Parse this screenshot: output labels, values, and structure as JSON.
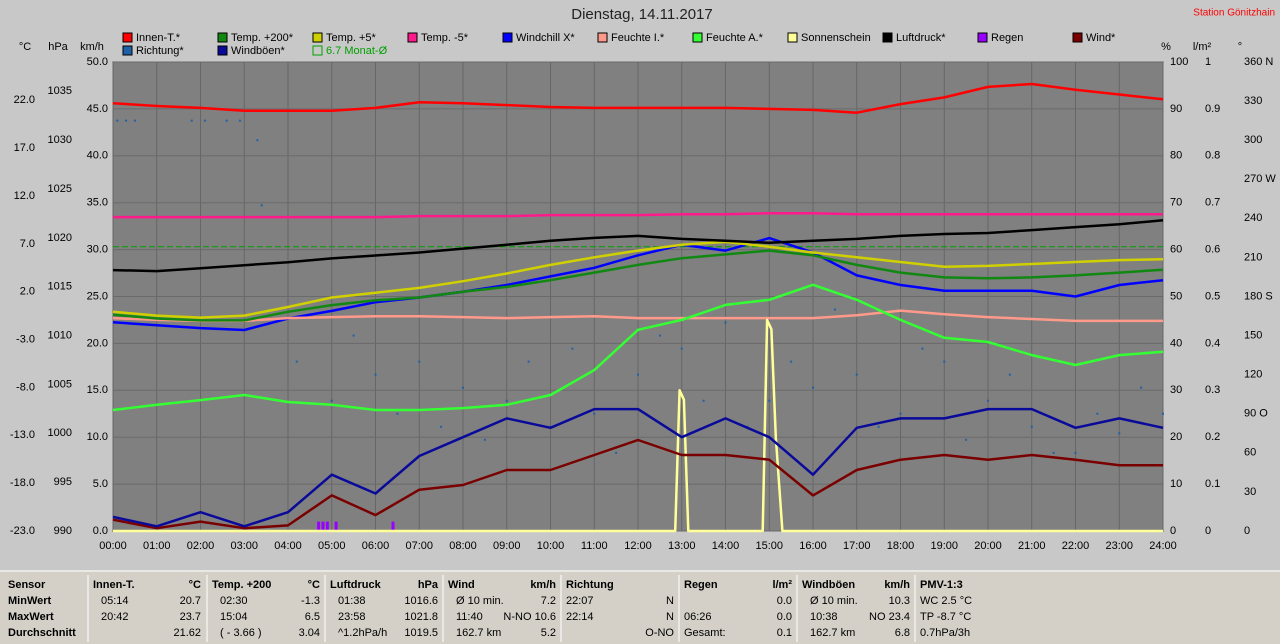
{
  "chart_data": {
    "type": "line",
    "title": "Dienstag, 14.11.2017",
    "subtitle": "Station Gönitzhain",
    "x": [
      0,
      1,
      2,
      3,
      4,
      5,
      6,
      7,
      8,
      9,
      10,
      11,
      12,
      13,
      14,
      15,
      16,
      17,
      18,
      19,
      20,
      21,
      22,
      23,
      24
    ],
    "xlim": [
      0,
      24
    ],
    "xticks": [
      {
        "value": 0,
        "label": "00:00"
      },
      {
        "value": 1,
        "label": "01:00"
      },
      {
        "value": 2,
        "label": "02:00"
      },
      {
        "value": 3,
        "label": "03:00"
      },
      {
        "value": 4,
        "label": "04:00"
      },
      {
        "value": 5,
        "label": "05:00"
      },
      {
        "value": 6,
        "label": "06:00"
      },
      {
        "value": 7,
        "label": "07:00"
      },
      {
        "value": 8,
        "label": "08:00"
      },
      {
        "value": 9,
        "label": "09:00"
      },
      {
        "value": 10,
        "label": "10:00"
      },
      {
        "value": 11,
        "label": "11:00"
      },
      {
        "value": 12,
        "label": "12:00"
      },
      {
        "value": 13,
        "label": "13:00"
      },
      {
        "value": 14,
        "label": "14:00"
      },
      {
        "value": 15,
        "label": "15:00"
      },
      {
        "value": 16,
        "label": "16:00"
      },
      {
        "value": 17,
        "label": "17:00"
      },
      {
        "value": 18,
        "label": "18:00"
      },
      {
        "value": 19,
        "label": "19:00"
      },
      {
        "value": 20,
        "label": "20:00"
      },
      {
        "value": 21,
        "label": "21:00"
      },
      {
        "value": 22,
        "label": "22:00"
      },
      {
        "value": 23,
        "label": "23:00"
      },
      {
        "value": 24,
        "label": "24:00"
      }
    ],
    "grid": true,
    "axes": [
      {
        "label": "°C",
        "ylim": [
          -23,
          26
        ],
        "yticks": [
          {
            "value": -23,
            "label": "-23.0"
          },
          {
            "value": -18,
            "label": "-18.0"
          },
          {
            "value": -13,
            "label": "-13.0"
          },
          {
            "value": -8,
            "label": "-8.0"
          },
          {
            "value": -3,
            "label": "-3.0"
          },
          {
            "value": 2,
            "label": "2.0"
          },
          {
            "value": 7,
            "label": "7.0"
          },
          {
            "value": 12,
            "label": "12.0"
          },
          {
            "value": 17,
            "label": "17.0"
          },
          {
            "value": 22,
            "label": "22.0"
          }
        ],
        "reference": {
          "name": "6.7 Monat-Ø",
          "value": 6.7,
          "color": "#00a000"
        },
        "series": [
          {
            "name": "Innen-T.*",
            "color": "#ff0000",
            "values": [
              21.7,
              21.4,
              21.2,
              20.9,
              20.9,
              20.9,
              21.2,
              21.8,
              21.7,
              21.5,
              21.3,
              21.2,
              21.2,
              21.2,
              21.2,
              21.1,
              21.0,
              20.7,
              21.6,
              22.3,
              23.4,
              23.7,
              23.1,
              22.6,
              22.1
            ]
          },
          {
            "name": "Temp. +200*",
            "color": "#118811",
            "values": [
              -0.4,
              -0.8,
              -1.0,
              -1.0,
              -0.1,
              0.6,
              1.1,
              1.4,
              2.0,
              2.5,
              3.2,
              4.0,
              4.8,
              5.5,
              5.9,
              6.3,
              5.8,
              4.8,
              4.0,
              3.5,
              3.4,
              3.5,
              3.7,
              4.0,
              4.3
            ]
          },
          {
            "name": "Temp. +5*",
            "color": "#d0d000",
            "values": [
              -0.1,
              -0.5,
              -0.7,
              -0.5,
              0.4,
              1.4,
              1.9,
              2.4,
              3.1,
              3.9,
              4.8,
              5.6,
              6.3,
              6.9,
              7.2,
              6.7,
              6.1,
              5.6,
              5.1,
              4.6,
              4.7,
              4.9,
              5.1,
              5.3,
              5.4
            ]
          },
          {
            "name": "Temp. -5*",
            "color": "#ff1a8c",
            "values": [
              9.8,
              9.8,
              9.8,
              9.8,
              9.8,
              9.8,
              9.8,
              9.9,
              9.9,
              9.9,
              10.0,
              10.0,
              10.0,
              10.1,
              10.1,
              10.2,
              10.2,
              10.1,
              10.1,
              10.1,
              10.1,
              10.1,
              10.1,
              10.1,
              10.1
            ]
          },
          {
            "name": "Windchill X*",
            "color": "#0000ff",
            "values": [
              -1.2,
              -1.5,
              -1.8,
              -2.0,
              -0.8,
              0.0,
              0.9,
              1.4,
              2.0,
              2.7,
              3.6,
              4.5,
              5.8,
              6.9,
              6.3,
              7.6,
              6.1,
              3.7,
              2.7,
              2.1,
              2.1,
              2.1,
              1.5,
              2.7,
              3.2
            ]
          }
        ]
      },
      {
        "label": "hPa",
        "ylim": [
          990,
          1038
        ],
        "yticks": [
          990,
          995,
          1000,
          1005,
          1010,
          1015,
          1020,
          1025,
          1030,
          1035
        ],
        "series": [
          {
            "name": "Luftdruck*",
            "color": "#000000",
            "values": [
              1016.7,
              1016.6,
              1016.9,
              1017.2,
              1017.5,
              1017.9,
              1018.2,
              1018.5,
              1018.9,
              1019.3,
              1019.7,
              1020.0,
              1020.2,
              1019.9,
              1019.7,
              1019.5,
              1019.7,
              1019.9,
              1020.2,
              1020.4,
              1020.5,
              1020.8,
              1021.1,
              1021.4,
              1021.8
            ]
          }
        ]
      },
      {
        "label": "km/h",
        "ylim": [
          0,
          50
        ],
        "yticks": [
          {
            "value": 0,
            "label": "0.0"
          },
          {
            "value": 5,
            "label": "5.0"
          },
          {
            "value": 10,
            "label": "10.0"
          },
          {
            "value": 15,
            "label": "15.0"
          },
          {
            "value": 20,
            "label": "20.0"
          },
          {
            "value": 25,
            "label": "25.0"
          },
          {
            "value": 30,
            "label": "30.0"
          },
          {
            "value": 35,
            "label": "35.0"
          },
          {
            "value": 40,
            "label": "40.0"
          },
          {
            "value": 45,
            "label": "45.0"
          },
          {
            "value": 50,
            "label": "50.0"
          }
        ],
        "series": [
          {
            "name": "Windböen*",
            "color": "#0a0a9a",
            "values": [
              1.5,
              0.5,
              2,
              0.5,
              2,
              6,
              4,
              8,
              10,
              12,
              11,
              13,
              13,
              10,
              12,
              10,
              6,
              11,
              12,
              12,
              13,
              13,
              11,
              12,
              11
            ]
          },
          {
            "name": "Wind*",
            "color": "#7a0000",
            "values": [
              1.2,
              0.3,
              1.0,
              0.3,
              0.6,
              3.8,
              1.7,
              4.4,
              4.9,
              6.5,
              6.5,
              8.1,
              9.7,
              8.1,
              8.1,
              7.6,
              3.8,
              6.5,
              7.6,
              8.1,
              7.6,
              8.1,
              7.6,
              7.0,
              7.0
            ]
          }
        ]
      },
      {
        "label": "%",
        "ylim": [
          0,
          100
        ],
        "yticks": [
          0,
          10,
          20,
          30,
          40,
          50,
          60,
          70,
          80,
          90,
          100
        ],
        "series": [
          {
            "name": "Feuchte I.*",
            "color": "#ff9a8a",
            "values": [
              45.4,
              45.0,
              44.8,
              44.8,
              45.4,
              45.6,
              45.8,
              45.8,
              45.6,
              45.4,
              45.6,
              45.8,
              45.4,
              45.4,
              45.4,
              45.4,
              45.4,
              46.0,
              47.0,
              46.2,
              45.6,
              45.2,
              44.8,
              44.8,
              44.8
            ]
          },
          {
            "name": "Feuchte A.*",
            "color": "#33ff33",
            "values": [
              25.8,
              26.9,
              27.9,
              29.0,
              27.5,
              26.9,
              25.8,
              25.8,
              26.2,
              26.9,
              29.0,
              34.3,
              42.9,
              45.0,
              48.2,
              49.3,
              52.5,
              49.3,
              45.0,
              41.2,
              40.3,
              37.5,
              35.4,
              37.5,
              38.2
            ]
          },
          {
            "name": "Sonnenschein",
            "color": "#ffff99",
            "x": [
              0,
              12.85,
              12.95,
              13.05,
              13.15,
              14.85,
              14.95,
              15.05,
              15.15,
              15.3,
              24
            ],
            "values": [
              0,
              0,
              30,
              28,
              0,
              0,
              45,
              43,
              20,
              0,
              0
            ]
          }
        ]
      },
      {
        "label": "l/m²",
        "ylim": [
          0,
          1
        ],
        "yticks": [
          0,
          0.1,
          0.2,
          0.3,
          0.4,
          0.5,
          0.6,
          0.7,
          0.8,
          0.9,
          1
        ],
        "series": [
          {
            "name": "Regen",
            "color": "#9900ff",
            "type": "bar",
            "x": [
              4.7,
              4.8,
              4.9,
              5.1,
              6.4
            ],
            "values": [
              0.02,
              0.02,
              0.02,
              0.02,
              0.02
            ]
          }
        ]
      },
      {
        "label": "°",
        "ylim": [
          0,
          360
        ],
        "yticks": [
          0,
          30,
          60,
          {
            "value": 90,
            "label": "90 O"
          },
          120,
          150,
          {
            "value": 180,
            "label": "180 S"
          },
          210,
          240,
          {
            "value": 270,
            "label": "270 W"
          },
          300,
          330,
          {
            "value": 360,
            "label": "360 N"
          }
        ],
        "series": [
          {
            "name": "Richtung*",
            "color": "#2060a8",
            "type": "scatter",
            "x": [
              0.1,
              0.3,
              0.5,
              1.8,
              2.1,
              2.6,
              2.9,
              3.3,
              3.4,
              4.2,
              5,
              5.5,
              6,
              6.5,
              7,
              7.5,
              8,
              8.5,
              9,
              9.5,
              10,
              10.5,
              11,
              11.5,
              12,
              12.5,
              13,
              13.5,
              14,
              14.5,
              15,
              15.5,
              16,
              16.5,
              17,
              17.5,
              18,
              18.5,
              19,
              19.5,
              20,
              20.5,
              21,
              21.5,
              22,
              22.5,
              23,
              23.5,
              24
            ],
            "values": [
              315,
              315,
              315,
              315,
              315,
              315,
              315,
              300,
              250,
              130,
              100,
              150,
              120,
              90,
              130,
              80,
              110,
              70,
              100,
              130,
              80,
              140,
              90,
              60,
              120,
              150,
              140,
              100,
              160,
              80,
              100,
              130,
              110,
              170,
              120,
              80,
              90,
              140,
              130,
              70,
              100,
              120,
              80,
              60,
              60,
              90,
              75,
              110,
              90
            ]
          }
        ]
      }
    ]
  },
  "table": {
    "row_headers": [
      "Sensor",
      "MinWert",
      "MaxWert",
      "Durchschnitt"
    ],
    "columns": [
      {
        "title": "Innen-T.",
        "unit": "°C",
        "cells": [
          {
            "left": "05:14",
            "right": "20.7"
          },
          {
            "left": "20:42",
            "right": "23.7"
          },
          {
            "right": "21.62"
          }
        ]
      },
      {
        "title": "Temp. +200",
        "unit": "°C",
        "cells": [
          {
            "left": "02:30",
            "right": "-1.3"
          },
          {
            "left": "15:04",
            "right": "6.5"
          },
          {
            "left": "( - 3.66 )",
            "right": "3.04"
          }
        ]
      },
      {
        "title": "Luftdruck",
        "unit": "hPa",
        "cells": [
          {
            "left": "01:38",
            "right": "1016.6"
          },
          {
            "left": "23:58",
            "right": "1021.8"
          },
          {
            "left": "^1.2hPa/h",
            "right": "1019.5"
          }
        ]
      },
      {
        "title": "Wind",
        "unit": "km/h",
        "cells": [
          {
            "left": "Ø 10 min.",
            "right": "7.2"
          },
          {
            "left": "11:40",
            "right": "N-NO 10.6"
          },
          {
            "left": "162.7 km",
            "right": "5.2"
          }
        ]
      },
      {
        "title": "Richtung",
        "cells": [
          {
            "left": "22:07",
            "right": "N"
          },
          {
            "left": "22:14",
            "right": "N"
          },
          {
            "right": "O-NO"
          }
        ]
      },
      {
        "title": "Regen",
        "unit": "l/m²",
        "cells": [
          {
            "right": "0.0"
          },
          {
            "left": "06:26",
            "right": "0.0"
          },
          {
            "left": "Gesamt:",
            "right": "0.1"
          }
        ]
      },
      {
        "title": "Windböen",
        "unit": "km/h",
        "cells": [
          {
            "left": "Ø 10 min.",
            "right": "10.3"
          },
          {
            "left": "10:38",
            "right": "NO 23.4"
          },
          {
            "left": "162.7 km",
            "right": "6.8"
          }
        ]
      },
      {
        "title": "PMV-1:3",
        "cells": [
          {
            "left": "WC 2.5 °C"
          },
          {
            "left": "TP -8.7 °C"
          },
          {
            "left": "0.7hPa/3h"
          }
        ]
      }
    ]
  }
}
